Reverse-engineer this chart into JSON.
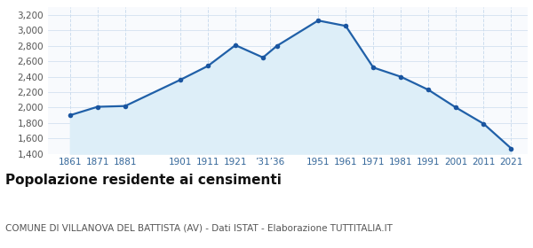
{
  "years": [
    1861,
    1871,
    1881,
    1901,
    1911,
    1921,
    1931,
    1936,
    1951,
    1961,
    1971,
    1981,
    1991,
    2001,
    2011,
    2021
  ],
  "population": [
    1900,
    2010,
    2020,
    2360,
    2540,
    2810,
    2650,
    2800,
    3130,
    3060,
    2520,
    2400,
    2230,
    2000,
    1790,
    1470
  ],
  "x_tick_labels": [
    "1861",
    "1871",
    "1881",
    "1901",
    "1911",
    "1921",
    "’31’36",
    "1951",
    "1961",
    "1971",
    "1981",
    "1991",
    "2001",
    "2011",
    "2021"
  ],
  "x_tick_positions": [
    1861,
    1871,
    1881,
    1901,
    1911,
    1921,
    1933.5,
    1951,
    1961,
    1971,
    1981,
    1991,
    2001,
    2011,
    2021
  ],
  "ylim": [
    1400,
    3300
  ],
  "yticks": [
    1400,
    1600,
    1800,
    2000,
    2200,
    2400,
    2600,
    2800,
    3000,
    3200
  ],
  "xlim_min": 1853,
  "xlim_max": 2027,
  "line_color": "#2060a8",
  "fill_color": "#ddeef8",
  "marker_color": "#1a55a0",
  "background_color": "#ffffff",
  "plot_bg_color": "#f8fafd",
  "grid_color": "#ccddee",
  "title": "Popolazione residente ai censimenti",
  "subtitle": "COMUNE DI VILLANOVA DEL BATTISTA (AV) - Dati ISTAT - Elaborazione TUTTITALIA.IT",
  "title_fontsize": 11,
  "subtitle_fontsize": 7.5,
  "tick_fontsize": 7.5,
  "tick_color": "#336699"
}
